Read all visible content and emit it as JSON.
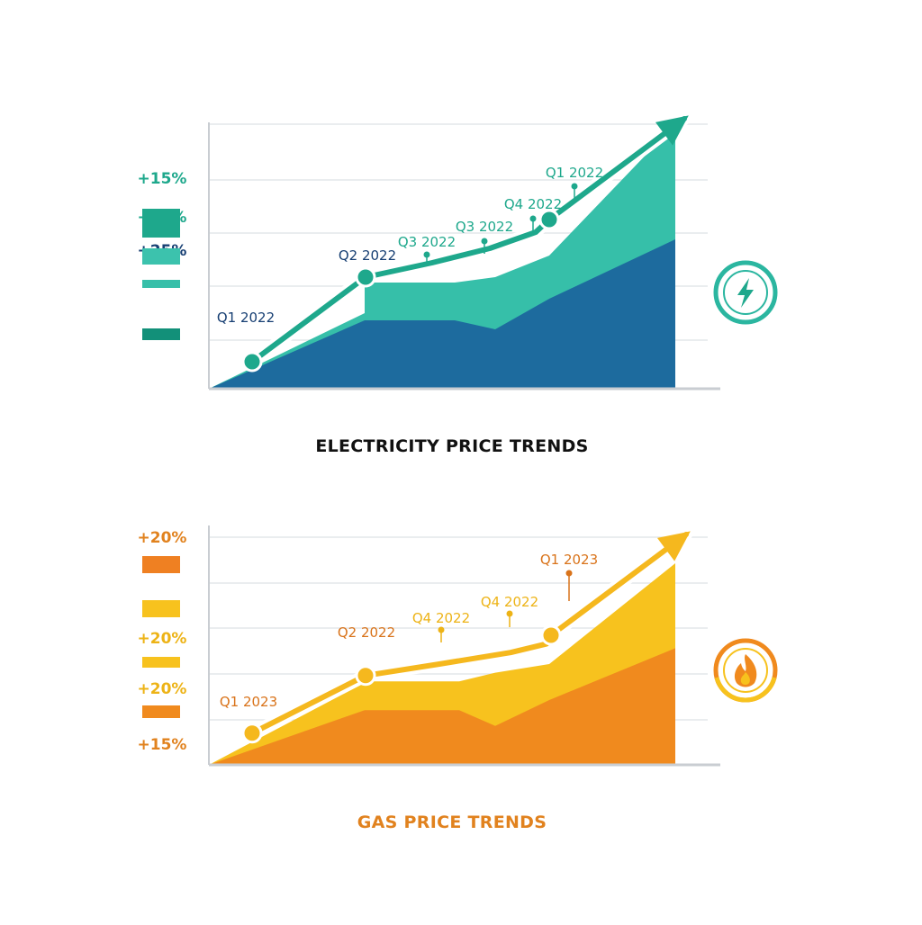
{
  "chart_data": [
    {
      "type": "area",
      "title": "ELECTRICITY PRICE TRENDS",
      "legend_labels": [
        "+15%",
        "+20%",
        "+25%"
      ],
      "series": [
        {
          "values": [
            0,
            38,
            38,
            38,
            33,
            50,
            83
          ],
          "color": "#1D6B9E"
        },
        {
          "values": [
            0,
            42,
            59,
            59,
            62,
            74,
            147
          ],
          "color": "#36BFA9"
        }
      ],
      "trend_points": [
        15,
        62,
        70,
        78,
        87,
        94,
        150
      ],
      "annotations": [
        {
          "label": "Q1 2022",
          "color": "#173F73"
        },
        {
          "label": "Q2 2022",
          "color": "#173F73"
        },
        {
          "label": "Q3 2022",
          "color": "#1EA88C"
        },
        {
          "label": "Q3 2022",
          "color": "#1EA88C"
        },
        {
          "label": "Q4 2022",
          "color": "#1EA88C"
        },
        {
          "label": "Q1 2022",
          "color": "#1EA88C"
        }
      ],
      "colors": {
        "accent": "#1EA88C",
        "dark": "#1D6B9E",
        "light": "#36BFA9",
        "legend": [
          "#1EA88C",
          "#3CC2AD",
          "#37BFA9",
          "#129079"
        ]
      },
      "icon": "lightning-bolt-icon"
    },
    {
      "type": "area",
      "title": "GAS PRICE TRENDS",
      "legend_labels": [
        "+20%",
        "+20%",
        "+20%",
        "+15%"
      ],
      "series": [
        {
          "values": [
            0,
            38,
            38,
            38,
            27,
            45,
            81
          ],
          "color": "#F08A1E"
        },
        {
          "values": [
            0,
            57,
            58,
            58,
            64,
            70,
            140
          ],
          "color": "#F7C21E"
        }
      ],
      "trend_points": [
        22,
        62,
        70,
        78,
        84,
        90,
        160
      ],
      "annotations": [
        {
          "label": "Q1 2023",
          "color": "#D9731A"
        },
        {
          "label": "Q2 2022",
          "color": "#D9731A"
        },
        {
          "label": "Q4 2022",
          "color": "#EDB316"
        },
        {
          "label": "Q4 2022",
          "color": "#EDB316"
        },
        {
          "label": "Q1 2023",
          "color": "#D9731A"
        }
      ],
      "colors": {
        "accent": "#F5B81E",
        "dark": "#F08A1E",
        "light": "#F7C21E",
        "legend": [
          "#EF8022",
          "#F7C21E",
          "#F7C21E",
          "#F08A1E"
        ]
      },
      "icon": "flame-icon"
    }
  ]
}
